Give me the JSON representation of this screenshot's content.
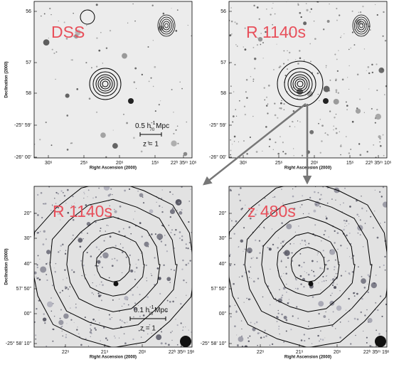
{
  "panels": [
    {
      "label": "DSS",
      "y_axis_label": "Declination (2000)",
      "x_axis_label": "Right Ascension (2000)",
      "yticks": [
        "56",
        "57",
        "58",
        "-25° 59'",
        "-26° 00'"
      ],
      "xticks": [
        "30ˢ",
        "25ˢ",
        "20ˢ",
        "15ˢ",
        "22ʰ 35ᵐ 10ˢ"
      ],
      "scale_bar": {
        "text": "0.5 h",
        "sup": "-1",
        "sub": "70",
        "unit": "Mpc"
      },
      "redshift": "z = 1"
    },
    {
      "label": "R 1140s",
      "x_axis_label": "Right Ascension (2000)",
      "yticks": [
        "56",
        "57",
        "58",
        "-25° 59'",
        "-26° 00'"
      ],
      "xticks": [
        "30ˢ",
        "25ˢ",
        "20ˢ",
        "15ˢ",
        "22ʰ 35ᵐ 10ˢ"
      ]
    },
    {
      "label": "R 1140s",
      "y_axis_label": "Declination (2000)",
      "x_axis_label": "Right Ascension (2000)",
      "yticks": [
        "20\"",
        "30\"",
        "40\"",
        "57' 50\"",
        "00\"",
        "-25° 58' 10\""
      ],
      "xticks": [
        "22ˢ",
        "21ˢ",
        "20ˢ",
        "22ʰ 35ᵐ 19ˢ"
      ],
      "scale_bar": {
        "text": "0.1 h",
        "sup": "-1",
        "sub": "70",
        "unit": "Mpc"
      },
      "redshift": "z = 1"
    },
    {
      "label": "z 480s",
      "x_axis_label": "Right Ascension (2000)",
      "yticks": [
        "20\"",
        "30\"",
        "40\"",
        "57' 50\"",
        "00\"",
        "-25° 58' 10\""
      ],
      "xticks": [
        "22ˢ",
        "21ˢ",
        "20ˢ",
        "22ʰ 35ᵐ 19ˢ"
      ]
    }
  ]
}
